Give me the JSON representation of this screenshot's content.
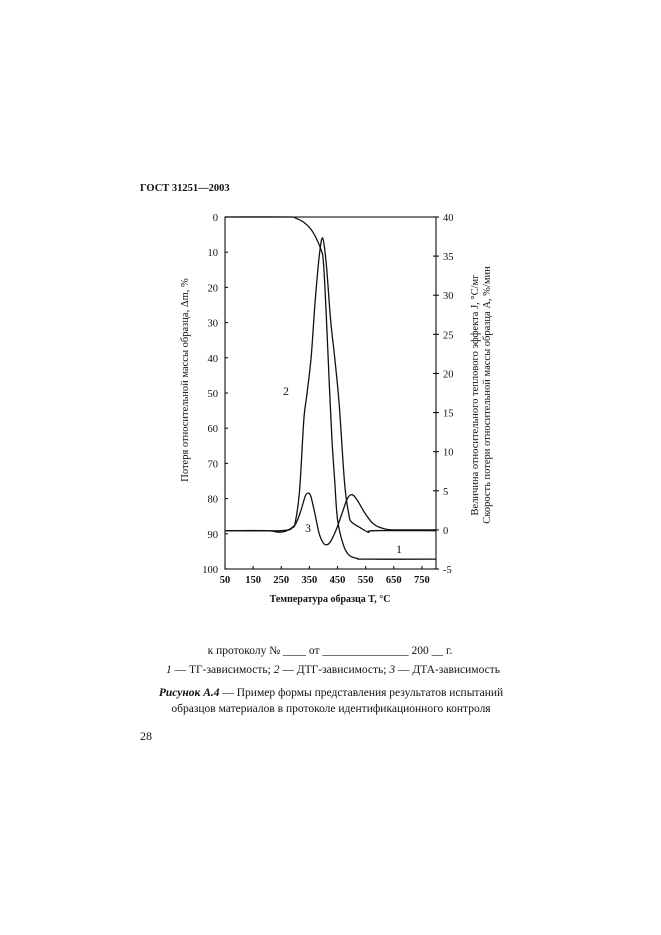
{
  "header": {
    "title": "ГОСТ 31251—2003"
  },
  "chart_data": {
    "type": "line",
    "xlabel": "Температура образца T, °C",
    "ylabel_left": "Потеря относительной массы образца, Δm, %",
    "ylabel_right": [
      "Величина относительного теплового эффекта J, °C/мг",
      "Скорость потери относительной массы образца A, %/мин"
    ],
    "xlim": [
      50,
      800
    ],
    "ylim_left": [
      0,
      100
    ],
    "ylim_left_inverted": true,
    "ylim_right": [
      -5,
      40
    ],
    "x_ticks": [
      "50",
      "150",
      "250",
      "350",
      "450",
      "550",
      "650",
      "750"
    ],
    "y_left_ticks": [
      "0",
      "10",
      "20",
      "30",
      "40",
      "50",
      "60",
      "70",
      "80",
      "90",
      "100"
    ],
    "y_right_ticks": [
      "40",
      "35",
      "30",
      "25",
      "20",
      "15",
      "10",
      "5",
      "0",
      "-5"
    ],
    "grid": false,
    "series": [
      {
        "name": "1",
        "axis": "left",
        "x": [
          50,
          280,
          300,
          330,
          360,
          390,
          400,
          410,
          421,
          430,
          440,
          450,
          470,
          490,
          520,
          550,
          800
        ],
        "y": [
          0,
          0,
          0.3,
          1.5,
          4,
          9,
          13,
          28,
          48,
          63,
          75,
          86,
          93,
          96,
          97,
          97.2,
          97.2
        ]
      },
      {
        "name": "2",
        "axis": "right",
        "x": [
          50,
          250,
          290,
          300,
          315,
          330,
          340,
          356,
          370,
          385,
          397,
          410,
          425,
          440,
          456,
          475,
          490,
          500,
          530,
          560,
          580,
          800
        ],
        "y": [
          -0.1,
          -0.1,
          0.3,
          1,
          5,
          14,
          17,
          22,
          29,
          35,
          37.3,
          34,
          27,
          22,
          16,
          6,
          2,
          1,
          0.3,
          -0.3,
          -0.1,
          -0.1
        ]
      },
      {
        "name": "3",
        "axis": "right",
        "x": [
          50,
          200,
          240,
          270,
          300,
          320,
          335,
          345,
          355,
          370,
          385,
          400,
          412,
          425,
          445,
          465,
          485,
          502,
          520,
          550,
          580,
          620,
          660,
          800
        ],
        "y": [
          -0.1,
          -0.1,
          -0.3,
          -0.1,
          0.7,
          2.5,
          4.3,
          4.7,
          4.3,
          2,
          -0.5,
          -1.7,
          -1.9,
          -1.5,
          0,
          2,
          4,
          4.5,
          3.8,
          2,
          0.7,
          0.1,
          0,
          0
        ]
      }
    ]
  },
  "caption": {
    "protocol_line": "к протоколу № ____ от _______________ 200 __ г.",
    "legend": [
      {
        "num": "1",
        "text": " — ТГ-зависимость; "
      },
      {
        "num": "2",
        "text": " — ДТГ-зависимость; "
      },
      {
        "num": "3",
        "text": " — ДТА-зависимость"
      }
    ],
    "figure_label": "Рисунок А.4",
    "figure_text_1": " — Пример формы представления результатов испытаний",
    "figure_text_2": "образцов материалов в протоколе идентификационного контроля"
  },
  "page_number": "28"
}
